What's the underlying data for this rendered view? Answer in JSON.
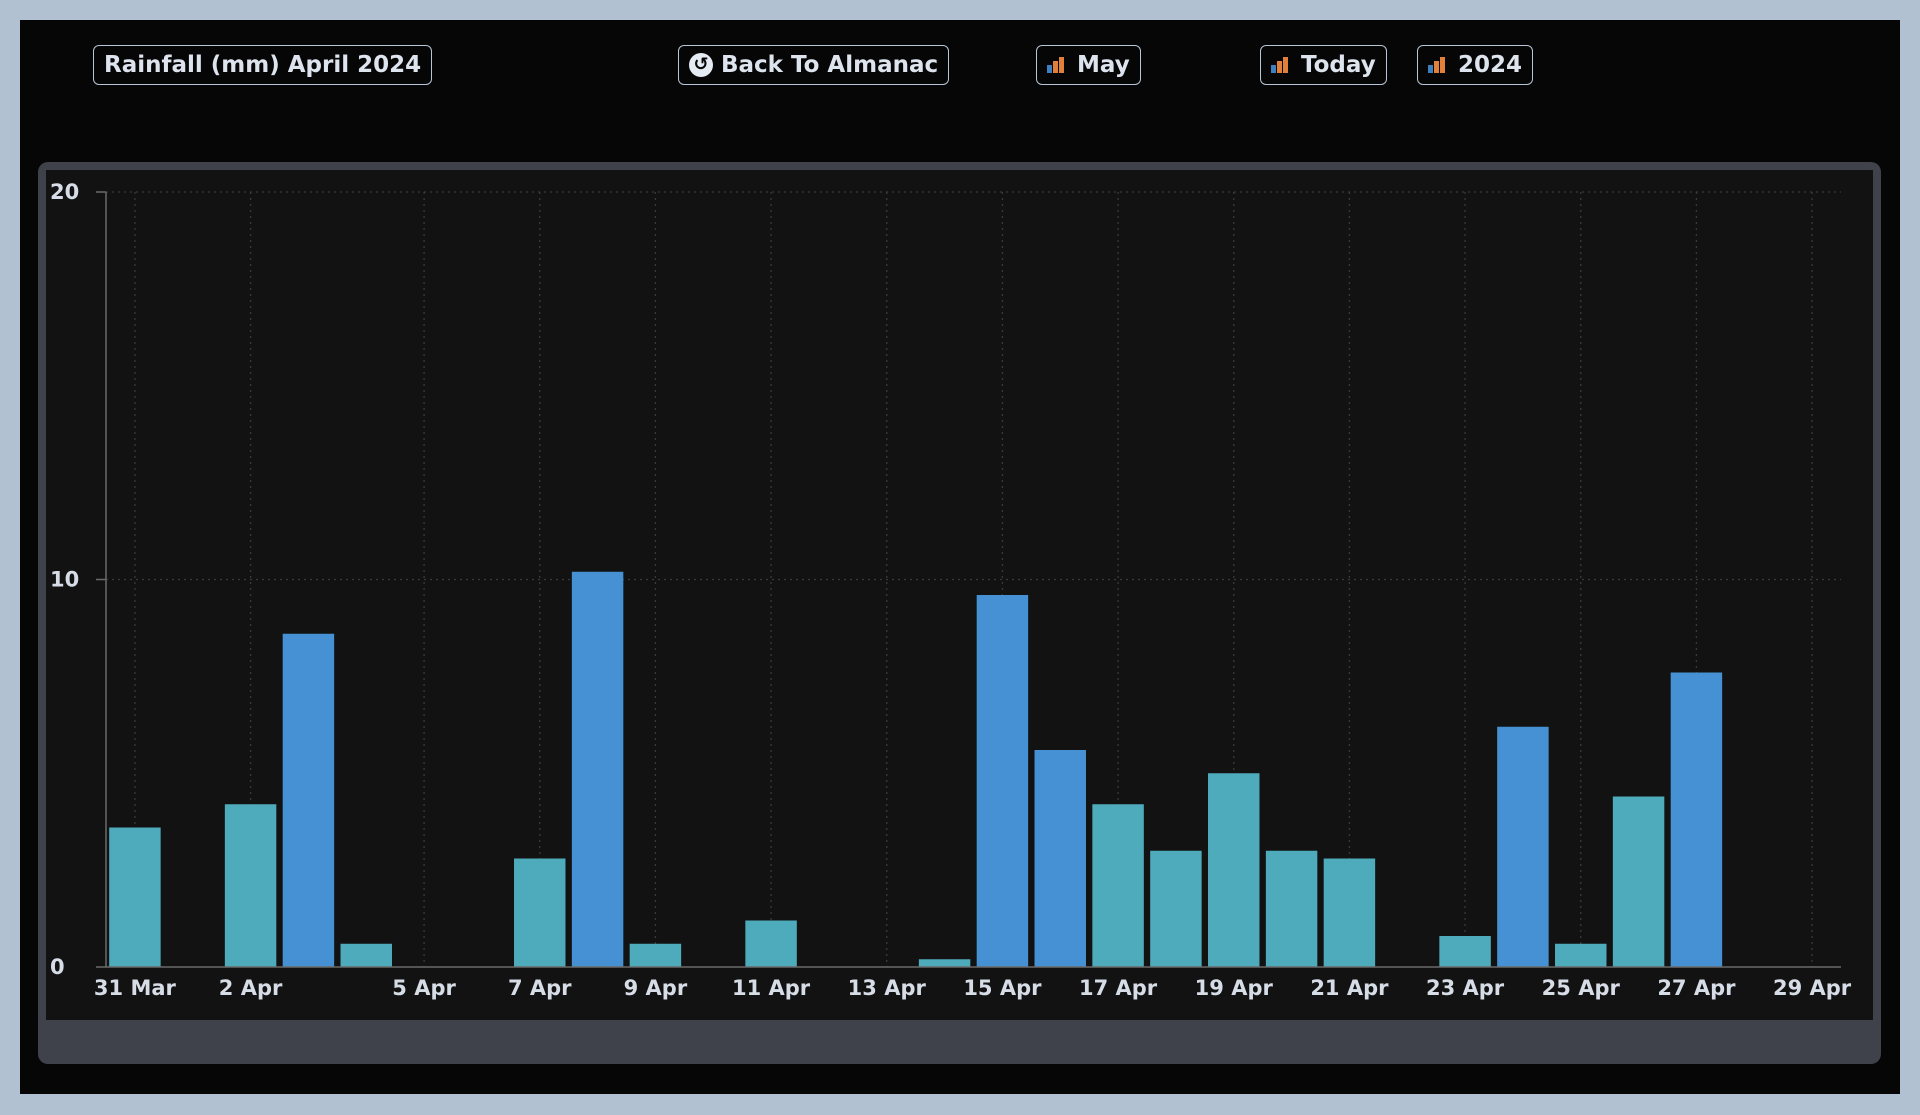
{
  "toolbar": {
    "title": "Rainfall (mm) April 2024",
    "back_label": "Back To Almanac",
    "back_icon": "undo-arrow-icon",
    "month_label": "May",
    "today_label": "Today",
    "year_label": "2024",
    "chart_icon": "bar-chart-icon"
  },
  "colors": {
    "bar_teal": "#4eabbc",
    "bar_blue": "#4691d3",
    "background": "#060606",
    "plot_background": "#121212",
    "panel": "#3f424b",
    "outer_border": "#b2c1d2"
  },
  "chart_data": {
    "type": "bar",
    "title": "",
    "xlabel": "",
    "ylabel": "",
    "ylim": [
      0,
      20
    ],
    "y_ticks": [
      0,
      10,
      20
    ],
    "grid": true,
    "x": [
      "31 Mar",
      "1 Apr",
      "2 Apr",
      "3 Apr",
      "4 Apr",
      "5 Apr",
      "6 Apr",
      "7 Apr",
      "8 Apr",
      "9 Apr",
      "10 Apr",
      "11 Apr",
      "12 Apr",
      "13 Apr",
      "14 Apr",
      "15 Apr",
      "16 Apr",
      "17 Apr",
      "18 Apr",
      "19 Apr",
      "20 Apr",
      "21 Apr",
      "22 Apr",
      "23 Apr",
      "24 Apr",
      "25 Apr",
      "26 Apr",
      "27 Apr",
      "28 Apr",
      "29 Apr"
    ],
    "x_tick_labels": [
      "31 Mar",
      "2 Apr",
      "5 Apr",
      "7 Apr",
      "9 Apr",
      "11 Apr",
      "13 Apr",
      "15 Apr",
      "17 Apr",
      "19 Apr",
      "21 Apr",
      "23 Apr",
      "25 Apr",
      "27 Apr",
      "29 Apr"
    ],
    "values": [
      3.6,
      0,
      4.2,
      8.6,
      0.6,
      0,
      0,
      2.8,
      10.2,
      0.6,
      0,
      1.2,
      0,
      0,
      0.2,
      9.6,
      5.6,
      4.2,
      3.0,
      5.0,
      3.0,
      2.8,
      0,
      0.8,
      6.2,
      0.6,
      4.4,
      7.6,
      0,
      0
    ],
    "bar_color_group": [
      "teal",
      "teal",
      "teal",
      "blue",
      "teal",
      "teal",
      "teal",
      "teal",
      "blue",
      "teal",
      "teal",
      "teal",
      "teal",
      "teal",
      "teal",
      "blue",
      "blue",
      "teal",
      "teal",
      "teal",
      "teal",
      "teal",
      "teal",
      "teal",
      "blue",
      "teal",
      "teal",
      "blue",
      "teal",
      "teal"
    ]
  }
}
